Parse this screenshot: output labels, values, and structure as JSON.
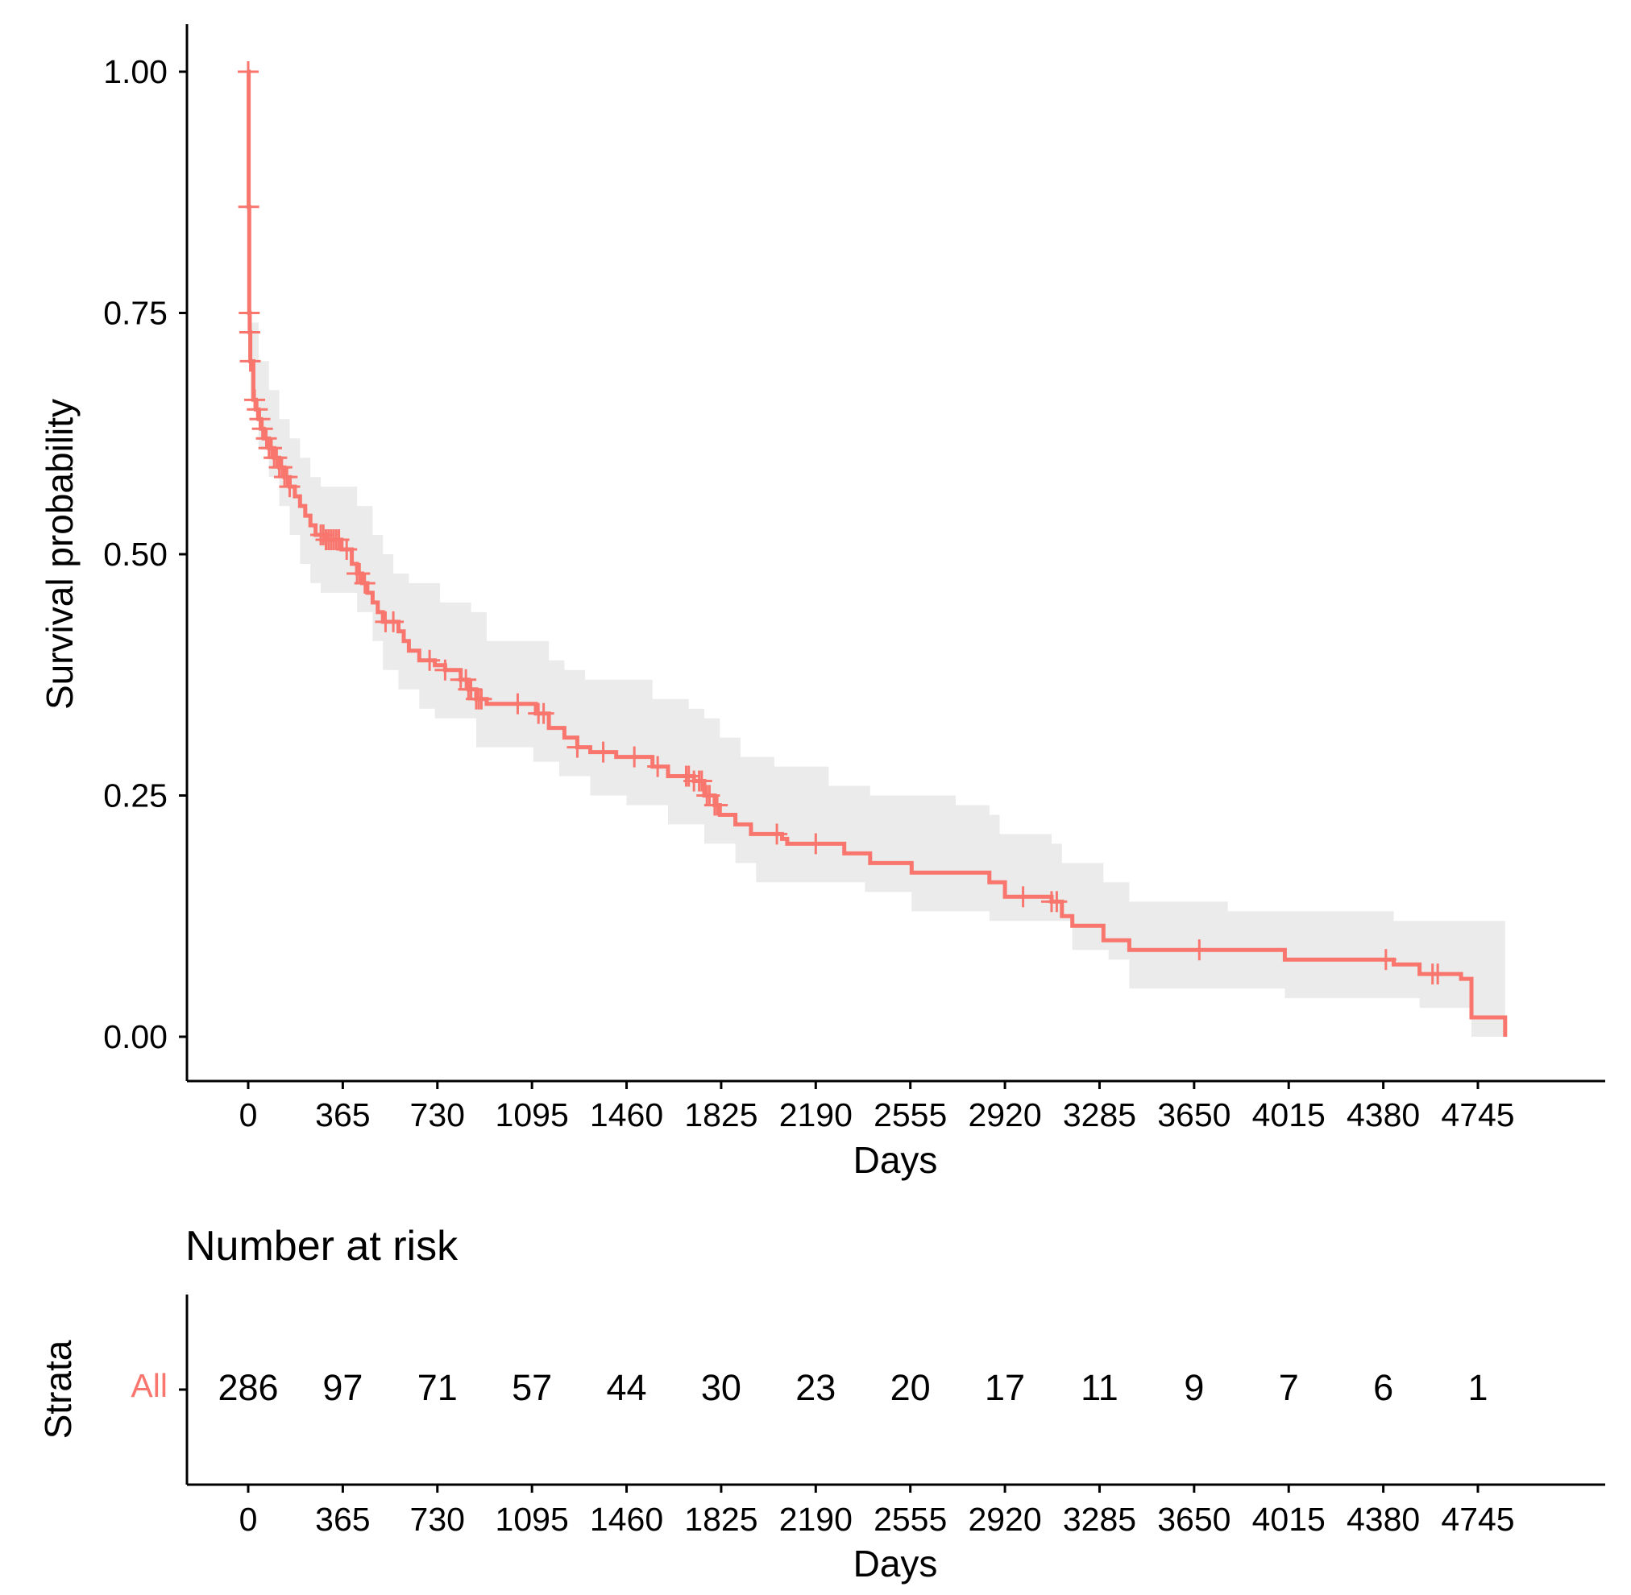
{
  "chart_data": {
    "type": "line",
    "subtype": "kaplan-meier-survival",
    "xlabel": "Days",
    "ylabel": "Survival probability",
    "xlim": [
      -180,
      5310
    ],
    "ylim": [
      -0.05,
      1.05
    ],
    "x_ticks": [
      0,
      365,
      730,
      1095,
      1460,
      1825,
      2190,
      2555,
      2920,
      3285,
      3650,
      4015,
      4380,
      4745
    ],
    "y_ticks": [
      0.0,
      0.25,
      0.5,
      0.75,
      1.0
    ],
    "y_tick_labels": [
      "0.00",
      "0.25",
      "0.50",
      "0.75",
      "1.00"
    ],
    "line_color": "#f8766d",
    "band_color": "#ebebeb",
    "series": [
      {
        "name": "All",
        "steps": [
          [
            0,
            1.0
          ],
          [
            2,
            0.86
          ],
          [
            4,
            0.75
          ],
          [
            6,
            0.73
          ],
          [
            8,
            0.7
          ],
          [
            20,
            0.66
          ],
          [
            30,
            0.65
          ],
          [
            40,
            0.64
          ],
          [
            50,
            0.63
          ],
          [
            60,
            0.62
          ],
          [
            80,
            0.61
          ],
          [
            100,
            0.6
          ],
          [
            120,
            0.59
          ],
          [
            140,
            0.58
          ],
          [
            160,
            0.57
          ],
          [
            180,
            0.56
          ],
          [
            200,
            0.55
          ],
          [
            220,
            0.54
          ],
          [
            240,
            0.53
          ],
          [
            260,
            0.52
          ],
          [
            300,
            0.515
          ],
          [
            360,
            0.505
          ],
          [
            400,
            0.49
          ],
          [
            420,
            0.48
          ],
          [
            440,
            0.47
          ],
          [
            460,
            0.46
          ],
          [
            480,
            0.45
          ],
          [
            500,
            0.44
          ],
          [
            520,
            0.43
          ],
          [
            580,
            0.42
          ],
          [
            600,
            0.41
          ],
          [
            620,
            0.4
          ],
          [
            660,
            0.39
          ],
          [
            720,
            0.385
          ],
          [
            760,
            0.38
          ],
          [
            820,
            0.37
          ],
          [
            850,
            0.36
          ],
          [
            880,
            0.35
          ],
          [
            920,
            0.345
          ],
          [
            1110,
            0.335
          ],
          [
            1160,
            0.32
          ],
          [
            1220,
            0.31
          ],
          [
            1270,
            0.3
          ],
          [
            1320,
            0.295
          ],
          [
            1420,
            0.29
          ],
          [
            1560,
            0.28
          ],
          [
            1620,
            0.27
          ],
          [
            1720,
            0.265
          ],
          [
            1760,
            0.25
          ],
          [
            1800,
            0.24
          ],
          [
            1820,
            0.23
          ],
          [
            1880,
            0.22
          ],
          [
            1940,
            0.21
          ],
          [
            2060,
            0.205
          ],
          [
            2080,
            0.2
          ],
          [
            2300,
            0.19
          ],
          [
            2400,
            0.18
          ],
          [
            2560,
            0.17
          ],
          [
            2860,
            0.16
          ],
          [
            2920,
            0.145
          ],
          [
            3100,
            0.14
          ],
          [
            3140,
            0.125
          ],
          [
            3180,
            0.115
          ],
          [
            3300,
            0.1
          ],
          [
            3400,
            0.09
          ],
          [
            4000,
            0.08
          ],
          [
            4420,
            0.075
          ],
          [
            4520,
            0.065
          ],
          [
            4680,
            0.06
          ],
          [
            4720,
            0.02
          ],
          [
            4850,
            0.0
          ]
        ],
        "censor_times": [
          0,
          2,
          4,
          6,
          8,
          25,
          35,
          45,
          55,
          70,
          80,
          90,
          100,
          110,
          120,
          130,
          140,
          150,
          160,
          280,
          290,
          300,
          310,
          320,
          330,
          340,
          350,
          380,
          420,
          430,
          450,
          530,
          560,
          700,
          760,
          820,
          840,
          850,
          860,
          880,
          890,
          900,
          1040,
          1120,
          1140,
          1270,
          1370,
          1490,
          1580,
          1690,
          1700,
          1720,
          1740,
          1750,
          1770,
          1780,
          1800,
          1810,
          2040,
          2190,
          2990,
          3100,
          3120,
          3670,
          4390,
          4570,
          4590
        ],
        "ci_upper": [
          [
            0,
            1.0
          ],
          [
            8,
            0.74
          ],
          [
            40,
            0.7
          ],
          [
            80,
            0.67
          ],
          [
            120,
            0.64
          ],
          [
            160,
            0.62
          ],
          [
            200,
            0.6
          ],
          [
            240,
            0.58
          ],
          [
            280,
            0.57
          ],
          [
            420,
            0.55
          ],
          [
            480,
            0.52
          ],
          [
            520,
            0.5
          ],
          [
            560,
            0.48
          ],
          [
            620,
            0.47
          ],
          [
            740,
            0.45
          ],
          [
            860,
            0.44
          ],
          [
            920,
            0.41
          ],
          [
            1160,
            0.39
          ],
          [
            1220,
            0.38
          ],
          [
            1300,
            0.37
          ],
          [
            1560,
            0.35
          ],
          [
            1700,
            0.34
          ],
          [
            1760,
            0.33
          ],
          [
            1820,
            0.31
          ],
          [
            1900,
            0.29
          ],
          [
            2030,
            0.28
          ],
          [
            2240,
            0.26
          ],
          [
            2400,
            0.25
          ],
          [
            2730,
            0.24
          ],
          [
            2860,
            0.23
          ],
          [
            2900,
            0.21
          ],
          [
            3100,
            0.2
          ],
          [
            3140,
            0.18
          ],
          [
            3300,
            0.16
          ],
          [
            3400,
            0.14
          ],
          [
            3780,
            0.13
          ],
          [
            4020,
            0.13
          ],
          [
            4420,
            0.12
          ],
          [
            4720,
            0.12
          ],
          [
            4850,
            0.12
          ]
        ],
        "ci_lower": [
          [
            0,
            1.0
          ],
          [
            8,
            0.66
          ],
          [
            40,
            0.61
          ],
          [
            80,
            0.58
          ],
          [
            120,
            0.55
          ],
          [
            160,
            0.52
          ],
          [
            200,
            0.49
          ],
          [
            240,
            0.47
          ],
          [
            280,
            0.46
          ],
          [
            420,
            0.44
          ],
          [
            480,
            0.41
          ],
          [
            520,
            0.38
          ],
          [
            580,
            0.36
          ],
          [
            660,
            0.34
          ],
          [
            720,
            0.33
          ],
          [
            880,
            0.3
          ],
          [
            1100,
            0.285
          ],
          [
            1200,
            0.27
          ],
          [
            1320,
            0.25
          ],
          [
            1460,
            0.24
          ],
          [
            1620,
            0.22
          ],
          [
            1760,
            0.2
          ],
          [
            1880,
            0.18
          ],
          [
            1960,
            0.16
          ],
          [
            2380,
            0.15
          ],
          [
            2560,
            0.13
          ],
          [
            2860,
            0.12
          ],
          [
            3180,
            0.09
          ],
          [
            3320,
            0.08
          ],
          [
            3400,
            0.05
          ],
          [
            4000,
            0.04
          ],
          [
            4520,
            0.03
          ],
          [
            4720,
            0.0
          ],
          [
            4850,
            0.0
          ]
        ]
      }
    ],
    "risk_table": {
      "title": "Number at risk",
      "ylabel": "Strata",
      "xlabel": "Days",
      "strata_label": "All",
      "times": [
        0,
        365,
        730,
        1095,
        1460,
        1825,
        2190,
        2555,
        2920,
        3285,
        3650,
        4015,
        4380,
        4745
      ],
      "counts": [
        "286",
        "97",
        "71",
        "57",
        "44",
        "30",
        "23",
        "20",
        "17",
        "11",
        "9",
        "7",
        "6",
        "1"
      ]
    }
  }
}
